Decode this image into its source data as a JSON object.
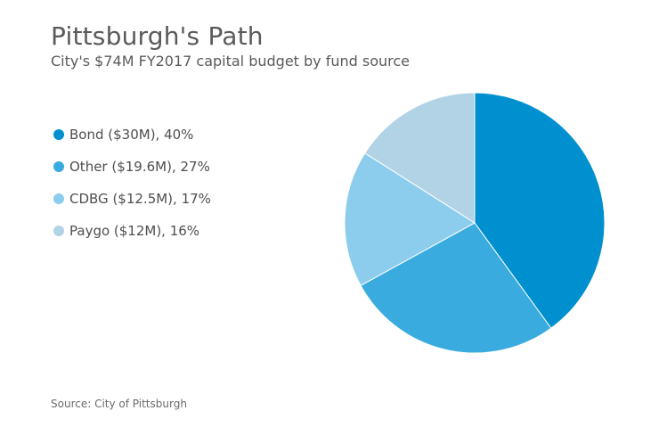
{
  "header": {
    "title": "Pittsburgh's Path",
    "subtitle": "City's $74M FY2017 capital budget by fund source"
  },
  "source": "Source: City of Pittsburgh",
  "chart_data": {
    "type": "pie",
    "title": "Pittsburgh's Path",
    "subtitle": "City's $74M FY2017 capital budget by fund source",
    "legend_position": "left",
    "slices": [
      {
        "label": "Bond ($30M), 40%",
        "name": "Bond",
        "amount_millions": 30,
        "percent": 40,
        "color": "#0090cf"
      },
      {
        "label": "Other ($19.6M), 27%",
        "name": "Other",
        "amount_millions": 19.6,
        "percent": 27,
        "color": "#3aabdf"
      },
      {
        "label": "CDBG ($12.5M), 17%",
        "name": "CDBG",
        "amount_millions": 12.5,
        "percent": 17,
        "color": "#8cccec"
      },
      {
        "label": "Paygo ($12M), 16%",
        "name": "Paygo",
        "amount_millions": 12,
        "percent": 16,
        "color": "#b2d3e6"
      }
    ]
  }
}
